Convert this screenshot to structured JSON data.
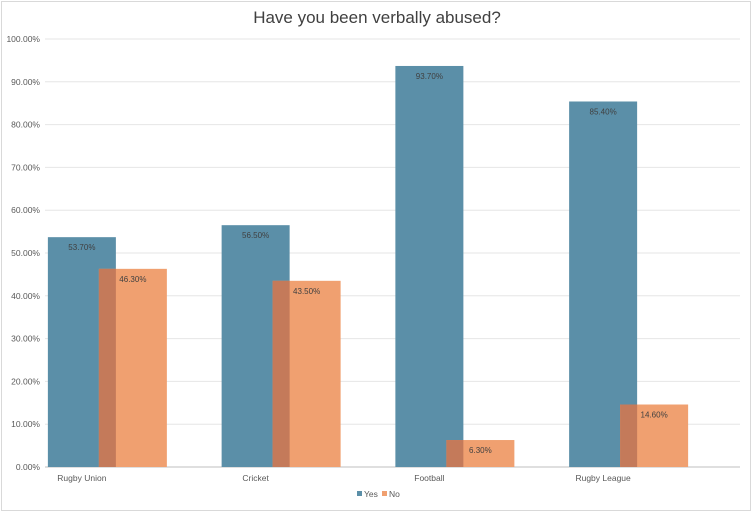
{
  "chart_data": {
    "type": "bar",
    "title": "Have you been verbally abused?",
    "xlabel": "",
    "ylabel": "",
    "categories": [
      "Rugby Union",
      "Cricket",
      "Football",
      "Rugby League"
    ],
    "series": [
      {
        "name": "Yes",
        "values": [
          53.7,
          56.5,
          93.7,
          85.4
        ],
        "labels": [
          "53.70%",
          "56.50%",
          "93.70%",
          "85.40%"
        ]
      },
      {
        "name": "No",
        "values": [
          46.3,
          43.5,
          6.3,
          14.6
        ],
        "labels": [
          "46.30%",
          "43.50%",
          "6.30%",
          "14.60%"
        ]
      }
    ],
    "ylim": [
      0,
      100
    ],
    "yticks": [
      "0.00%",
      "10.00%",
      "20.00%",
      "30.00%",
      "40.00%",
      "50.00%",
      "60.00%",
      "70.00%",
      "80.00%",
      "90.00%",
      "100.00%"
    ],
    "grid": true,
    "legend_position": "bottom",
    "colors": {
      "Yes": "#5b8fa8",
      "No": "#f0a070",
      "overlap": "#c47a5a"
    }
  }
}
